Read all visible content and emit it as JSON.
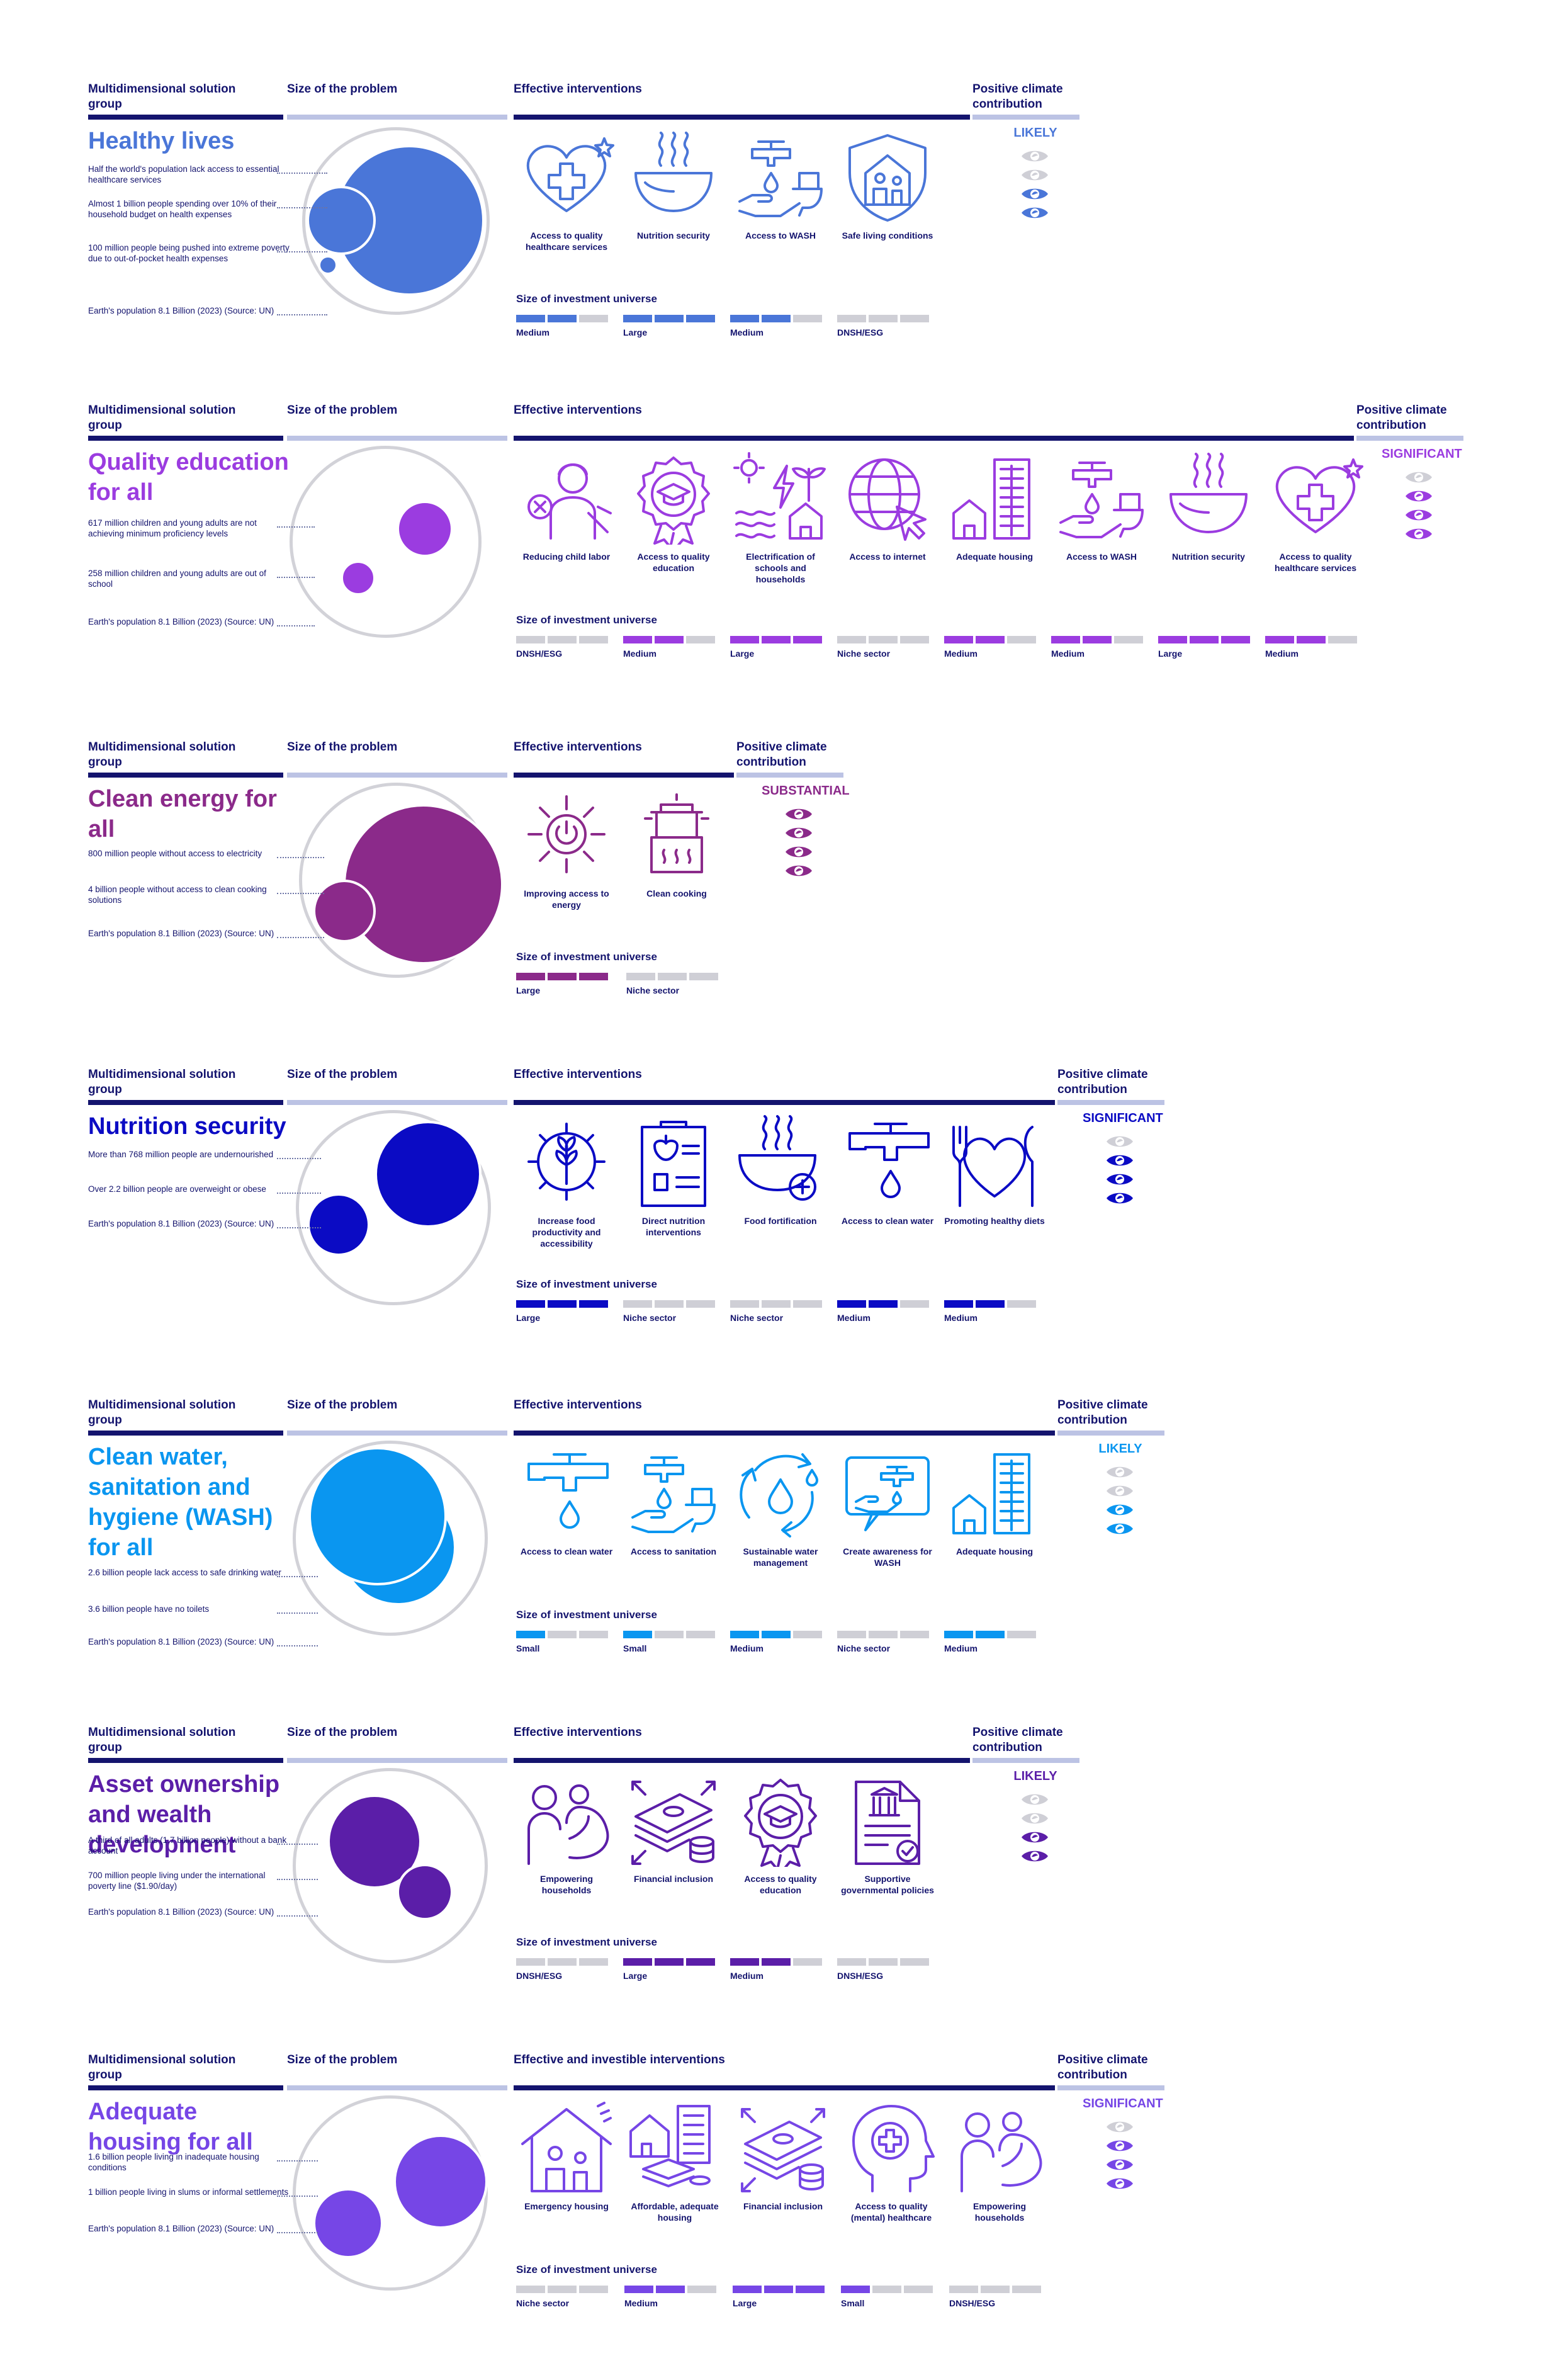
{
  "headers": {
    "group": "Multidimensional solution group",
    "size": "Size of the problem",
    "interventions": "Effective interventions",
    "interventions_alt": "Effective and investible interventions",
    "climate": "Positive climate contribution",
    "siu": "Size of investment universe"
  },
  "sections": [
    {
      "title": "Healthy lives",
      "color": "#4a76d8",
      "stats": [
        "Half the world's population lack access to essential healthcare services",
        "Almost 1 billion people spending over 10% of their household budget on health expenses",
        "100 million people being pushed into extreme poverty due to out-of-pocket health expenses",
        "Earth's population 8.1 Billion (2023) (Source: UN)"
      ],
      "interventions": [
        {
          "label": "Access to quality healthcare services",
          "icon": "heart-cross-icon",
          "size": "Medium",
          "level": 2
        },
        {
          "label": "Nutrition security",
          "icon": "steaming-bowl-icon",
          "size": "Large",
          "level": 3
        },
        {
          "label": "Access to WASH",
          "icon": "tap-toilet-icon",
          "size": "Medium",
          "level": 2
        },
        {
          "label": "Safe living conditions",
          "icon": "shield-house-icon",
          "size": "DNSH/ESG",
          "level": 0
        }
      ],
      "climate": "LIKELY",
      "climate_level": 2
    },
    {
      "title": "Quality education for all",
      "color": "#9b3ce0",
      "stats": [
        "617 million children and young adults are not achieving minimum proficiency levels",
        "258 million children and young adults are out of school",
        "Earth's population 8.1 Billion (2023) (Source: UN)"
      ],
      "interventions": [
        {
          "label": "Reducing child labor",
          "icon": "child-labor-icon",
          "size": "DNSH/ESG",
          "level": 0
        },
        {
          "label": "Access to quality education",
          "icon": "education-badge-icon",
          "size": "Medium",
          "level": 2
        },
        {
          "label": "Electrification of schools and households",
          "icon": "electrification-icon",
          "size": "Large",
          "level": 3
        },
        {
          "label": "Access to internet",
          "icon": "globe-cursor-icon",
          "size": "Niche sector",
          "level": 0
        },
        {
          "label": "Adequate housing",
          "icon": "housing-icon",
          "size": "Medium",
          "level": 2
        },
        {
          "label": "Access to WASH",
          "icon": "tap-toilet-icon",
          "size": "Medium",
          "level": 2
        },
        {
          "label": "Nutrition security",
          "icon": "steaming-bowl-icon",
          "size": "Large",
          "level": 3
        },
        {
          "label": "Access to quality healthcare services",
          "icon": "heart-cross-icon",
          "size": "Medium",
          "level": 2
        }
      ],
      "climate": "SIGNIFICANT",
      "climate_level": 3
    },
    {
      "title": "Clean energy for all",
      "color": "#8b2a8a",
      "stats": [
        "800 million people without access to electricity",
        "4 billion people without access to clean cooking solutions",
        "Earth's population 8.1 Billion (2023) (Source: UN)"
      ],
      "interventions": [
        {
          "label": "Improving access to energy",
          "icon": "sun-power-icon",
          "size": "Large",
          "level": 3
        },
        {
          "label": "Clean cooking",
          "icon": "cooking-pot-icon",
          "size": "Niche sector",
          "level": 0
        }
      ],
      "climate": "SUBSTANTIAL",
      "climate_level": 4
    },
    {
      "title": "Nutrition security",
      "color": "#0b0bc4",
      "stats": [
        "More than 768 million people are undernourished",
        "Over 2.2 billion people are overweight or obese",
        "Earth's population 8.1 Billion (2023) (Source: UN)"
      ],
      "interventions": [
        {
          "label": "Increase food productivity and accessibility",
          "icon": "gear-wheat-icon",
          "size": "Large",
          "level": 3
        },
        {
          "label": "Direct nutrition interventions",
          "icon": "clipboard-apple-icon",
          "size": "Niche sector",
          "level": 0
        },
        {
          "label": "Food fortification",
          "icon": "bowl-plus-icon",
          "size": "Niche sector",
          "level": 0
        },
        {
          "label": "Access to clean water",
          "icon": "tap-drop-icon",
          "size": "Medium",
          "level": 2
        },
        {
          "label": "Promoting healthy diets",
          "icon": "heart-cutlery-icon",
          "size": "Medium",
          "level": 2
        }
      ],
      "climate": "SIGNIFICANT",
      "climate_level": 3
    },
    {
      "title": "Clean water, sanitation and hygiene (WASH) for all",
      "color": "#0a96f0",
      "stats": [
        "2.6 billion people lack access to safe drinking water",
        "3.6 billion people have no toilets",
        "Earth's population 8.1 Billion (2023) (Source: UN)"
      ],
      "interventions": [
        {
          "label": "Access to clean water",
          "icon": "tap-drop-icon",
          "size": "Small",
          "level": 1
        },
        {
          "label": "Access to sanitation",
          "icon": "tap-toilet-icon",
          "size": "Small",
          "level": 1
        },
        {
          "label": "Sustainable water management",
          "icon": "water-cycle-icon",
          "size": "Medium",
          "level": 2
        },
        {
          "label": "Create awareness for WASH",
          "icon": "awareness-screen-icon",
          "size": "Niche sector",
          "level": 0
        },
        {
          "label": "Adequate housing",
          "icon": "housing-icon",
          "size": "Medium",
          "level": 2
        }
      ],
      "climate": "LIKELY",
      "climate_level": 2
    },
    {
      "title": "Asset ownership and wealth development",
      "color": "#5b1ea8",
      "stats": [
        "A third of all adults (1.7 billion people) without a bank account",
        "700 million people living under the international poverty line ($1.90/day)",
        "Earth's population 8.1 Billion (2023) (Source: UN)"
      ],
      "interventions": [
        {
          "label": "Empowering households",
          "icon": "strong-family-icon",
          "size": "DNSH/ESG",
          "level": 0
        },
        {
          "label": "Financial inclusion",
          "icon": "money-stack-icon",
          "size": "Large",
          "level": 3
        },
        {
          "label": "Access to quality education",
          "icon": "education-badge-icon",
          "size": "Medium",
          "level": 2
        },
        {
          "label": "Supportive governmental policies",
          "icon": "policy-document-icon",
          "size": "DNSH/ESG",
          "level": 0
        }
      ],
      "climate": "LIKELY",
      "climate_level": 2
    },
    {
      "title": "Adequate housing for all",
      "color": "#7646e6",
      "stats": [
        "1.6 billion people living in inadequate housing conditions",
        "1 billion people living in slums or informal settlements",
        "Earth's population 8.1 Billion (2023) (Source: UN)"
      ],
      "interventions": [
        {
          "label": "Emergency housing",
          "icon": "emergency-housing-icon",
          "size": "Niche sector",
          "level": 0
        },
        {
          "label": "Affordable, adequate housing",
          "icon": "affordable-housing-icon",
          "size": "Medium",
          "level": 2
        },
        {
          "label": "Financial inclusion",
          "icon": "money-stack-icon",
          "size": "Large",
          "level": 3
        },
        {
          "label": "Access to quality (mental) healthcare",
          "icon": "mental-health-icon",
          "size": "Small",
          "level": 1
        },
        {
          "label": "Empowering households",
          "icon": "strong-family-icon",
          "size": "DNSH/ESG",
          "level": 0
        }
      ],
      "climate": "SIGNIFICANT",
      "climate_level": 3
    }
  ]
}
